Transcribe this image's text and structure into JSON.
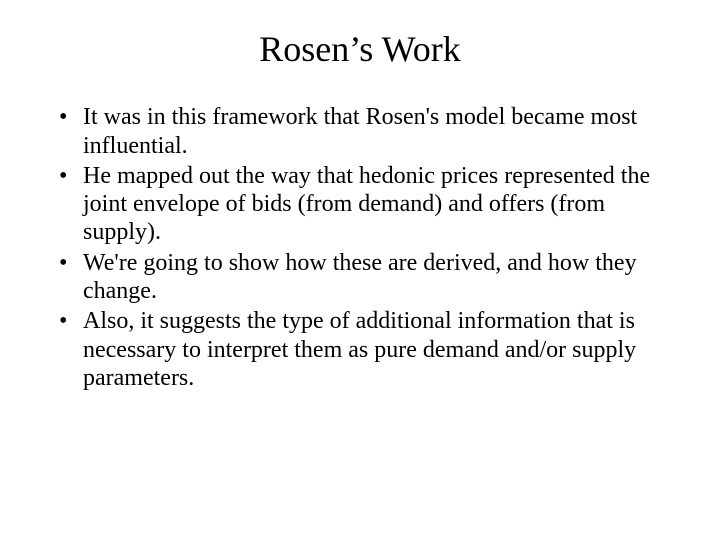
{
  "background_color": "#ffffff",
  "text_color": "#000000",
  "font_family": "Times New Roman",
  "title": {
    "text": "Rosen’s Work",
    "fontsize": 36,
    "align": "center"
  },
  "bullets": {
    "fontsize": 24,
    "marker": "•",
    "items": [
      "It was in this framework that Rosen's model became most influential.",
      "He mapped out the way that hedonic prices represented the joint envelope of bids (from demand) and offers (from supply).",
      "We're going to show how these are derived, and how they change.",
      "Also, it suggests the type of additional information that is necessary to interpret them as pure demand and/or supply parameters."
    ]
  }
}
